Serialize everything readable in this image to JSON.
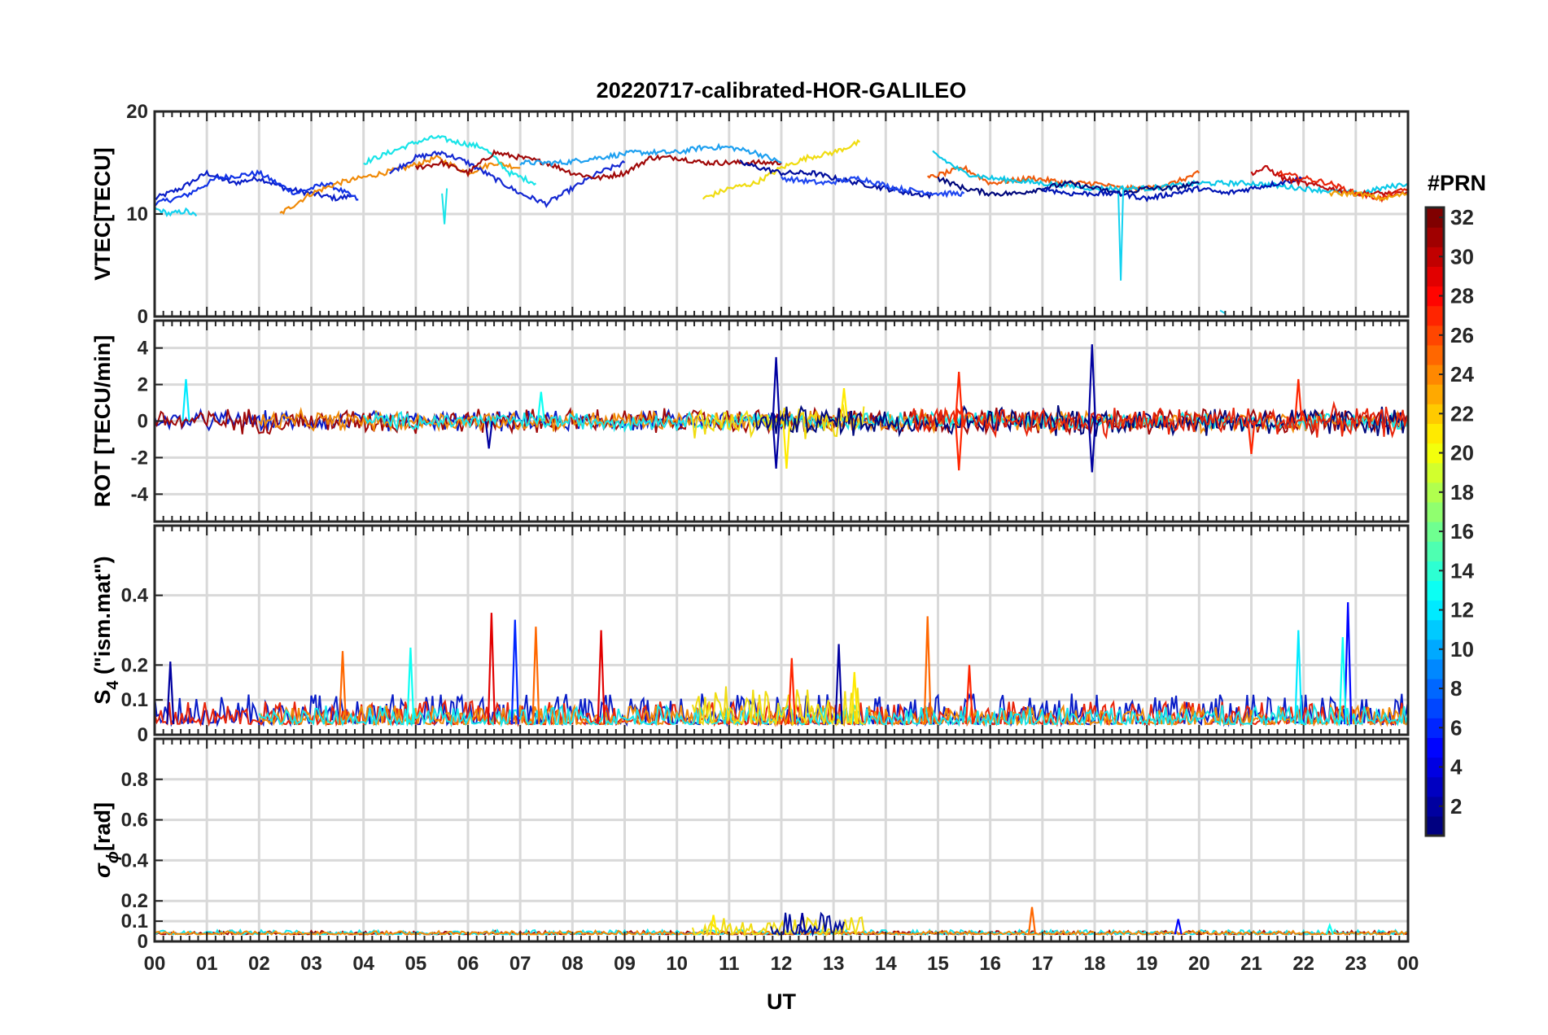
{
  "title": "20220717-calibrated-HOR-GALILEO",
  "xlabel": "UT",
  "x_ticks": [
    "00",
    "01",
    "02",
    "03",
    "04",
    "05",
    "06",
    "07",
    "08",
    "09",
    "10",
    "11",
    "12",
    "13",
    "14",
    "15",
    "16",
    "17",
    "18",
    "19",
    "20",
    "21",
    "22",
    "23",
    "00"
  ],
  "colorbar": {
    "title": "#PRN",
    "ticks": [
      "2",
      "4",
      "6",
      "8",
      "10",
      "12",
      "14",
      "16",
      "18",
      "20",
      "22",
      "24",
      "26",
      "28",
      "30",
      "32"
    ],
    "range": [
      1,
      32
    ],
    "colormap": "jet"
  },
  "chart_data": [
    {
      "type": "line",
      "panel": "vtec",
      "ylabel": "VTEC[TECU]",
      "ylim": [
        0,
        20
      ],
      "y_ticks": [
        "0",
        "10",
        "20"
      ],
      "y_tick_values": [
        0,
        10,
        20
      ],
      "xlim": [
        0,
        24
      ],
      "series": [
        {
          "prn": 3,
          "color": "#0a1ec8",
          "x": [
            0,
            0.5,
            1,
            1.5,
            2,
            2.5,
            3,
            3.5,
            3.8
          ],
          "y": [
            11.5,
            12.5,
            14,
            13,
            13.5,
            12.5,
            12,
            11.5,
            11.8
          ]
        },
        {
          "prn": 5,
          "color": "#1032e6",
          "x": [
            0,
            0.6,
            1.2,
            2,
            2.7,
            3.3,
            3.9
          ],
          "y": [
            11,
            11.8,
            13.5,
            14,
            12,
            13,
            11.4
          ]
        },
        {
          "prn": 12,
          "color": "#12d2f0",
          "x": [
            0,
            0.3,
            0.6,
            0.8
          ],
          "y": [
            10.5,
            10,
            10.3,
            9.8
          ]
        },
        {
          "prn": 24,
          "color": "#f08a08",
          "x": [
            2.4,
            3,
            3.5,
            4.2,
            4.8,
            5.4,
            6,
            6.5,
            7
          ],
          "y": [
            10,
            12,
            13,
            13.8,
            14.5,
            15.5,
            14,
            15,
            14.5
          ]
        },
        {
          "prn": 13,
          "color": "#18e4e8",
          "x": [
            4,
            4.5,
            5,
            5.4,
            5.8,
            6.3,
            6.8,
            7.3
          ],
          "y": [
            15,
            16,
            17,
            17.5,
            17,
            16.5,
            14,
            13
          ]
        },
        {
          "prn": 6,
          "color": "#1428d2",
          "x": [
            4.5,
            5,
            5.5,
            6,
            6.5,
            7,
            7.5,
            8,
            8.5,
            9
          ],
          "y": [
            14,
            15.5,
            16,
            15,
            13.5,
            12,
            11,
            12.5,
            14,
            15
          ]
        },
        {
          "prn": 29,
          "color": "#a00808",
          "x": [
            5,
            5.5,
            6,
            6.5,
            7,
            7.5,
            8,
            8.5,
            9,
            9.5,
            10,
            10.5,
            11,
            11.5,
            12
          ],
          "y": [
            14.5,
            15,
            14,
            16,
            15.5,
            15,
            14,
            13.5,
            14,
            15.5,
            15.5,
            15,
            15,
            15,
            15
          ]
        },
        {
          "prn": 11,
          "color": "#1ea0f0",
          "x": [
            7,
            7.8,
            8.5,
            9.2,
            10,
            10.5,
            11,
            11.5,
            12
          ],
          "y": [
            15,
            15,
            15.5,
            16,
            16,
            16.5,
            16.5,
            16,
            15
          ]
        },
        {
          "prn": 21,
          "color": "#f0dc10",
          "x": [
            10.5,
            11,
            11.5,
            12,
            12.5,
            13,
            13.5
          ],
          "y": [
            11.5,
            12.5,
            13,
            14.5,
            15.5,
            16,
            17
          ]
        },
        {
          "prn": 2,
          "color": "#000c9c",
          "x": [
            11.2,
            12,
            12.6,
            13,
            13.5,
            14,
            14.5,
            14.9
          ],
          "y": [
            15,
            14,
            14,
            13.5,
            13,
            12.5,
            12,
            11.8
          ]
        },
        {
          "prn": 7,
          "color": "#1e46f0",
          "x": [
            12,
            12.8,
            13.5,
            14.2,
            15,
            15.5
          ],
          "y": [
            13.5,
            13,
            13.5,
            12.5,
            12,
            12
          ]
        },
        {
          "prn": 25,
          "color": "#f05a0a",
          "x": [
            14.8,
            15.5,
            16,
            16.8,
            17.5,
            18,
            18.5,
            19,
            19.5,
            20
          ],
          "y": [
            13.5,
            14.5,
            13,
            13.5,
            13,
            13,
            12.5,
            12.5,
            13,
            14
          ]
        },
        {
          "prn": 14,
          "color": "#0ac8e8",
          "x": [
            14.9,
            15.5,
            16,
            17,
            18,
            19,
            20,
            21,
            22,
            23,
            24
          ],
          "y": [
            16,
            14,
            13.5,
            13,
            12.5,
            12.5,
            13,
            13,
            12.5,
            12,
            13
          ]
        },
        {
          "prn": 1,
          "color": "#00087c",
          "x": [
            15,
            15.5,
            16,
            16.5,
            17,
            17.5,
            18,
            18.5,
            19,
            19.5,
            20
          ],
          "y": [
            13.5,
            12.5,
            12,
            12,
            12.5,
            13,
            12.5,
            12,
            12.5,
            12.5,
            13
          ]
        },
        {
          "prn": 4,
          "color": "#0014b4",
          "x": [
            17,
            17.5,
            18,
            18.5,
            19,
            19.5,
            20,
            20.5,
            21,
            21.5,
            22
          ],
          "y": [
            12.5,
            12,
            12,
            12,
            11.5,
            12,
            12.5,
            12,
            12.5,
            13,
            13.5
          ]
        },
        {
          "prn": 30,
          "color": "#be0a0a",
          "x": [
            21,
            21.3,
            21.6,
            22,
            22.5,
            23,
            23.5,
            24
          ],
          "y": [
            14,
            14.5,
            13.5,
            13,
            12.5,
            12,
            12,
            12
          ]
        },
        {
          "prn": 27,
          "color": "#e8240a",
          "x": [
            21.5,
            22,
            22.5,
            23,
            23.5,
            24
          ],
          "y": [
            14,
            13.5,
            13,
            12,
            11.5,
            12.5
          ]
        },
        {
          "prn": 22,
          "color": "#f0a008",
          "x": [
            22.5,
            23,
            23.5,
            24
          ],
          "y": [
            12,
            12,
            11.5,
            12
          ]
        }
      ],
      "annotations": [
        {
          "prn": 13,
          "kind": "dip",
          "x": 5.55,
          "y": 9
        },
        {
          "prn": 12,
          "kind": "dip",
          "x": 18.5,
          "y": 3.5
        },
        {
          "prn": 12,
          "kind": "fragment",
          "x": 20.4,
          "y": 0.3
        }
      ]
    },
    {
      "type": "line",
      "panel": "rot",
      "ylabel": "ROT [TECU/min]",
      "ylim": [
        -5.5,
        5.5
      ],
      "y_ticks": [
        "4",
        "2",
        "0",
        "-2",
        "-4"
      ],
      "y_tick_values": [
        4,
        2,
        0,
        -2,
        -4
      ],
      "xlim": [
        0,
        24
      ],
      "noise_amplitude_range": [
        -1.5,
        1.5
      ],
      "series": [
        {
          "prn": 3,
          "color": "#0a1ec8",
          "active": [
            0,
            14
          ],
          "amp": 0.4
        },
        {
          "prn": 29,
          "color": "#a00808",
          "active": [
            0,
            24
          ],
          "amp": 0.5
        },
        {
          "prn": 24,
          "color": "#f08a08",
          "active": [
            2,
            24
          ],
          "amp": 0.4
        },
        {
          "prn": 13,
          "color": "#18e4e8",
          "active": [
            4,
            24
          ],
          "amp": 0.35
        },
        {
          "prn": 21,
          "color": "#f0dc10",
          "active": [
            10.3,
            13.6
          ],
          "amp": 0.7
        },
        {
          "prn": 1,
          "color": "#00087c",
          "active": [
            11.5,
            24
          ],
          "amp": 0.6
        },
        {
          "prn": 27,
          "color": "#e8240a",
          "active": [
            14.5,
            24
          ],
          "amp": 0.6
        }
      ],
      "spikes": [
        {
          "x": 0.6,
          "y": 2.3,
          "prn": 12
        },
        {
          "x": 7.4,
          "y": 1.6,
          "prn": 13
        },
        {
          "x": 6.4,
          "y": -1.5,
          "prn": 2
        },
        {
          "x": 11.9,
          "y": 3.5,
          "prn": 2
        },
        {
          "x": 11.9,
          "y": -2.6,
          "prn": 2
        },
        {
          "x": 12.1,
          "y": -2.6,
          "prn": 21
        },
        {
          "x": 13.2,
          "y": 1.8,
          "prn": 21
        },
        {
          "x": 15.4,
          "y": 2.7,
          "prn": 27
        },
        {
          "x": 15.4,
          "y": -2.7,
          "prn": 27
        },
        {
          "x": 17.95,
          "y": 4.2,
          "prn": 2
        },
        {
          "x": 17.95,
          "y": -2.8,
          "prn": 2
        },
        {
          "x": 21.9,
          "y": 2.3,
          "prn": 27
        },
        {
          "x": 21,
          "y": -1.8,
          "prn": 27
        }
      ]
    },
    {
      "type": "line",
      "panel": "s4",
      "ylabel_main": "S",
      "ylabel_sub": "4",
      "ylabel_tail": " (\"ism.mat\")",
      "ylim": [
        0,
        0.6
      ],
      "y_ticks": [
        "0",
        "0.1",
        "0.2",
        "0.4"
      ],
      "y_tick_values": [
        0,
        0.1,
        0.2,
        0.4
      ],
      "xlim": [
        0,
        24
      ],
      "baseline": 0.03,
      "series": [
        {
          "prn": 3,
          "color": "#0a1ec8",
          "active": [
            0,
            24
          ],
          "amp": 0.04
        },
        {
          "prn": 27,
          "color": "#e8240a",
          "active": [
            0,
            24
          ],
          "amp": 0.03
        },
        {
          "prn": 24,
          "color": "#f08a08",
          "active": [
            2,
            24
          ],
          "amp": 0.025
        },
        {
          "prn": 13,
          "color": "#18e4e8",
          "active": [
            2,
            24
          ],
          "amp": 0.025
        },
        {
          "prn": 21,
          "color": "#f0dc10",
          "active": [
            10.3,
            13.6
          ],
          "amp": 0.05
        }
      ],
      "spikes": [
        {
          "x": 0.3,
          "y": 0.21,
          "prn": 2
        },
        {
          "x": 3.6,
          "y": 0.24,
          "prn": 25
        },
        {
          "x": 4.9,
          "y": 0.25,
          "prn": 13
        },
        {
          "x": 6.45,
          "y": 0.35,
          "prn": 29
        },
        {
          "x": 6.9,
          "y": 0.33,
          "prn": 6
        },
        {
          "x": 7.3,
          "y": 0.31,
          "prn": 25
        },
        {
          "x": 8.55,
          "y": 0.3,
          "prn": 29
        },
        {
          "x": 12.2,
          "y": 0.22,
          "prn": 27
        },
        {
          "x": 13.1,
          "y": 0.26,
          "prn": 2
        },
        {
          "x": 13.4,
          "y": 0.18,
          "prn": 21
        },
        {
          "x": 14.8,
          "y": 0.34,
          "prn": 25
        },
        {
          "x": 15.6,
          "y": 0.2,
          "prn": 27
        },
        {
          "x": 21.9,
          "y": 0.3,
          "prn": 12
        },
        {
          "x": 22.85,
          "y": 0.38,
          "prn": 5
        },
        {
          "x": 22.75,
          "y": 0.28,
          "prn": 13
        }
      ]
    },
    {
      "type": "line",
      "panel": "sigma_phi",
      "ylabel_main": "σ",
      "ylabel_sub": "ϕ",
      "ylabel_tail": "[rad]",
      "ylim": [
        0,
        1
      ],
      "y_ticks": [
        "0",
        "0.1",
        "0.2",
        "0.4",
        "0.6",
        "0.8"
      ],
      "y_tick_values": [
        0,
        0.1,
        0.2,
        0.4,
        0.6,
        0.8
      ],
      "xlim": [
        0,
        24
      ],
      "baseline": 0.035,
      "series": [
        {
          "prn": 29,
          "color": "#a00808",
          "active": [
            0,
            24
          ],
          "amp": 0.008
        },
        {
          "prn": 13,
          "color": "#18e4e8",
          "active": [
            0,
            24
          ],
          "amp": 0.01
        },
        {
          "prn": 24,
          "color": "#f08a08",
          "active": [
            0,
            24
          ],
          "amp": 0.008
        },
        {
          "prn": 21,
          "color": "#f0dc10",
          "active": [
            10.3,
            13.6
          ],
          "amp": 0.04
        },
        {
          "prn": 2,
          "color": "#000c9c",
          "active": [
            11.8,
            13.2
          ],
          "amp": 0.05
        }
      ],
      "spikes": [
        {
          "x": 10.7,
          "y": 0.13,
          "prn": 21
        },
        {
          "x": 12.4,
          "y": 0.14,
          "prn": 2
        },
        {
          "x": 16.8,
          "y": 0.17,
          "prn": 25
        },
        {
          "x": 19.6,
          "y": 0.11,
          "prn": 5
        },
        {
          "x": 22.5,
          "y": 0.08,
          "prn": 13
        }
      ]
    }
  ]
}
